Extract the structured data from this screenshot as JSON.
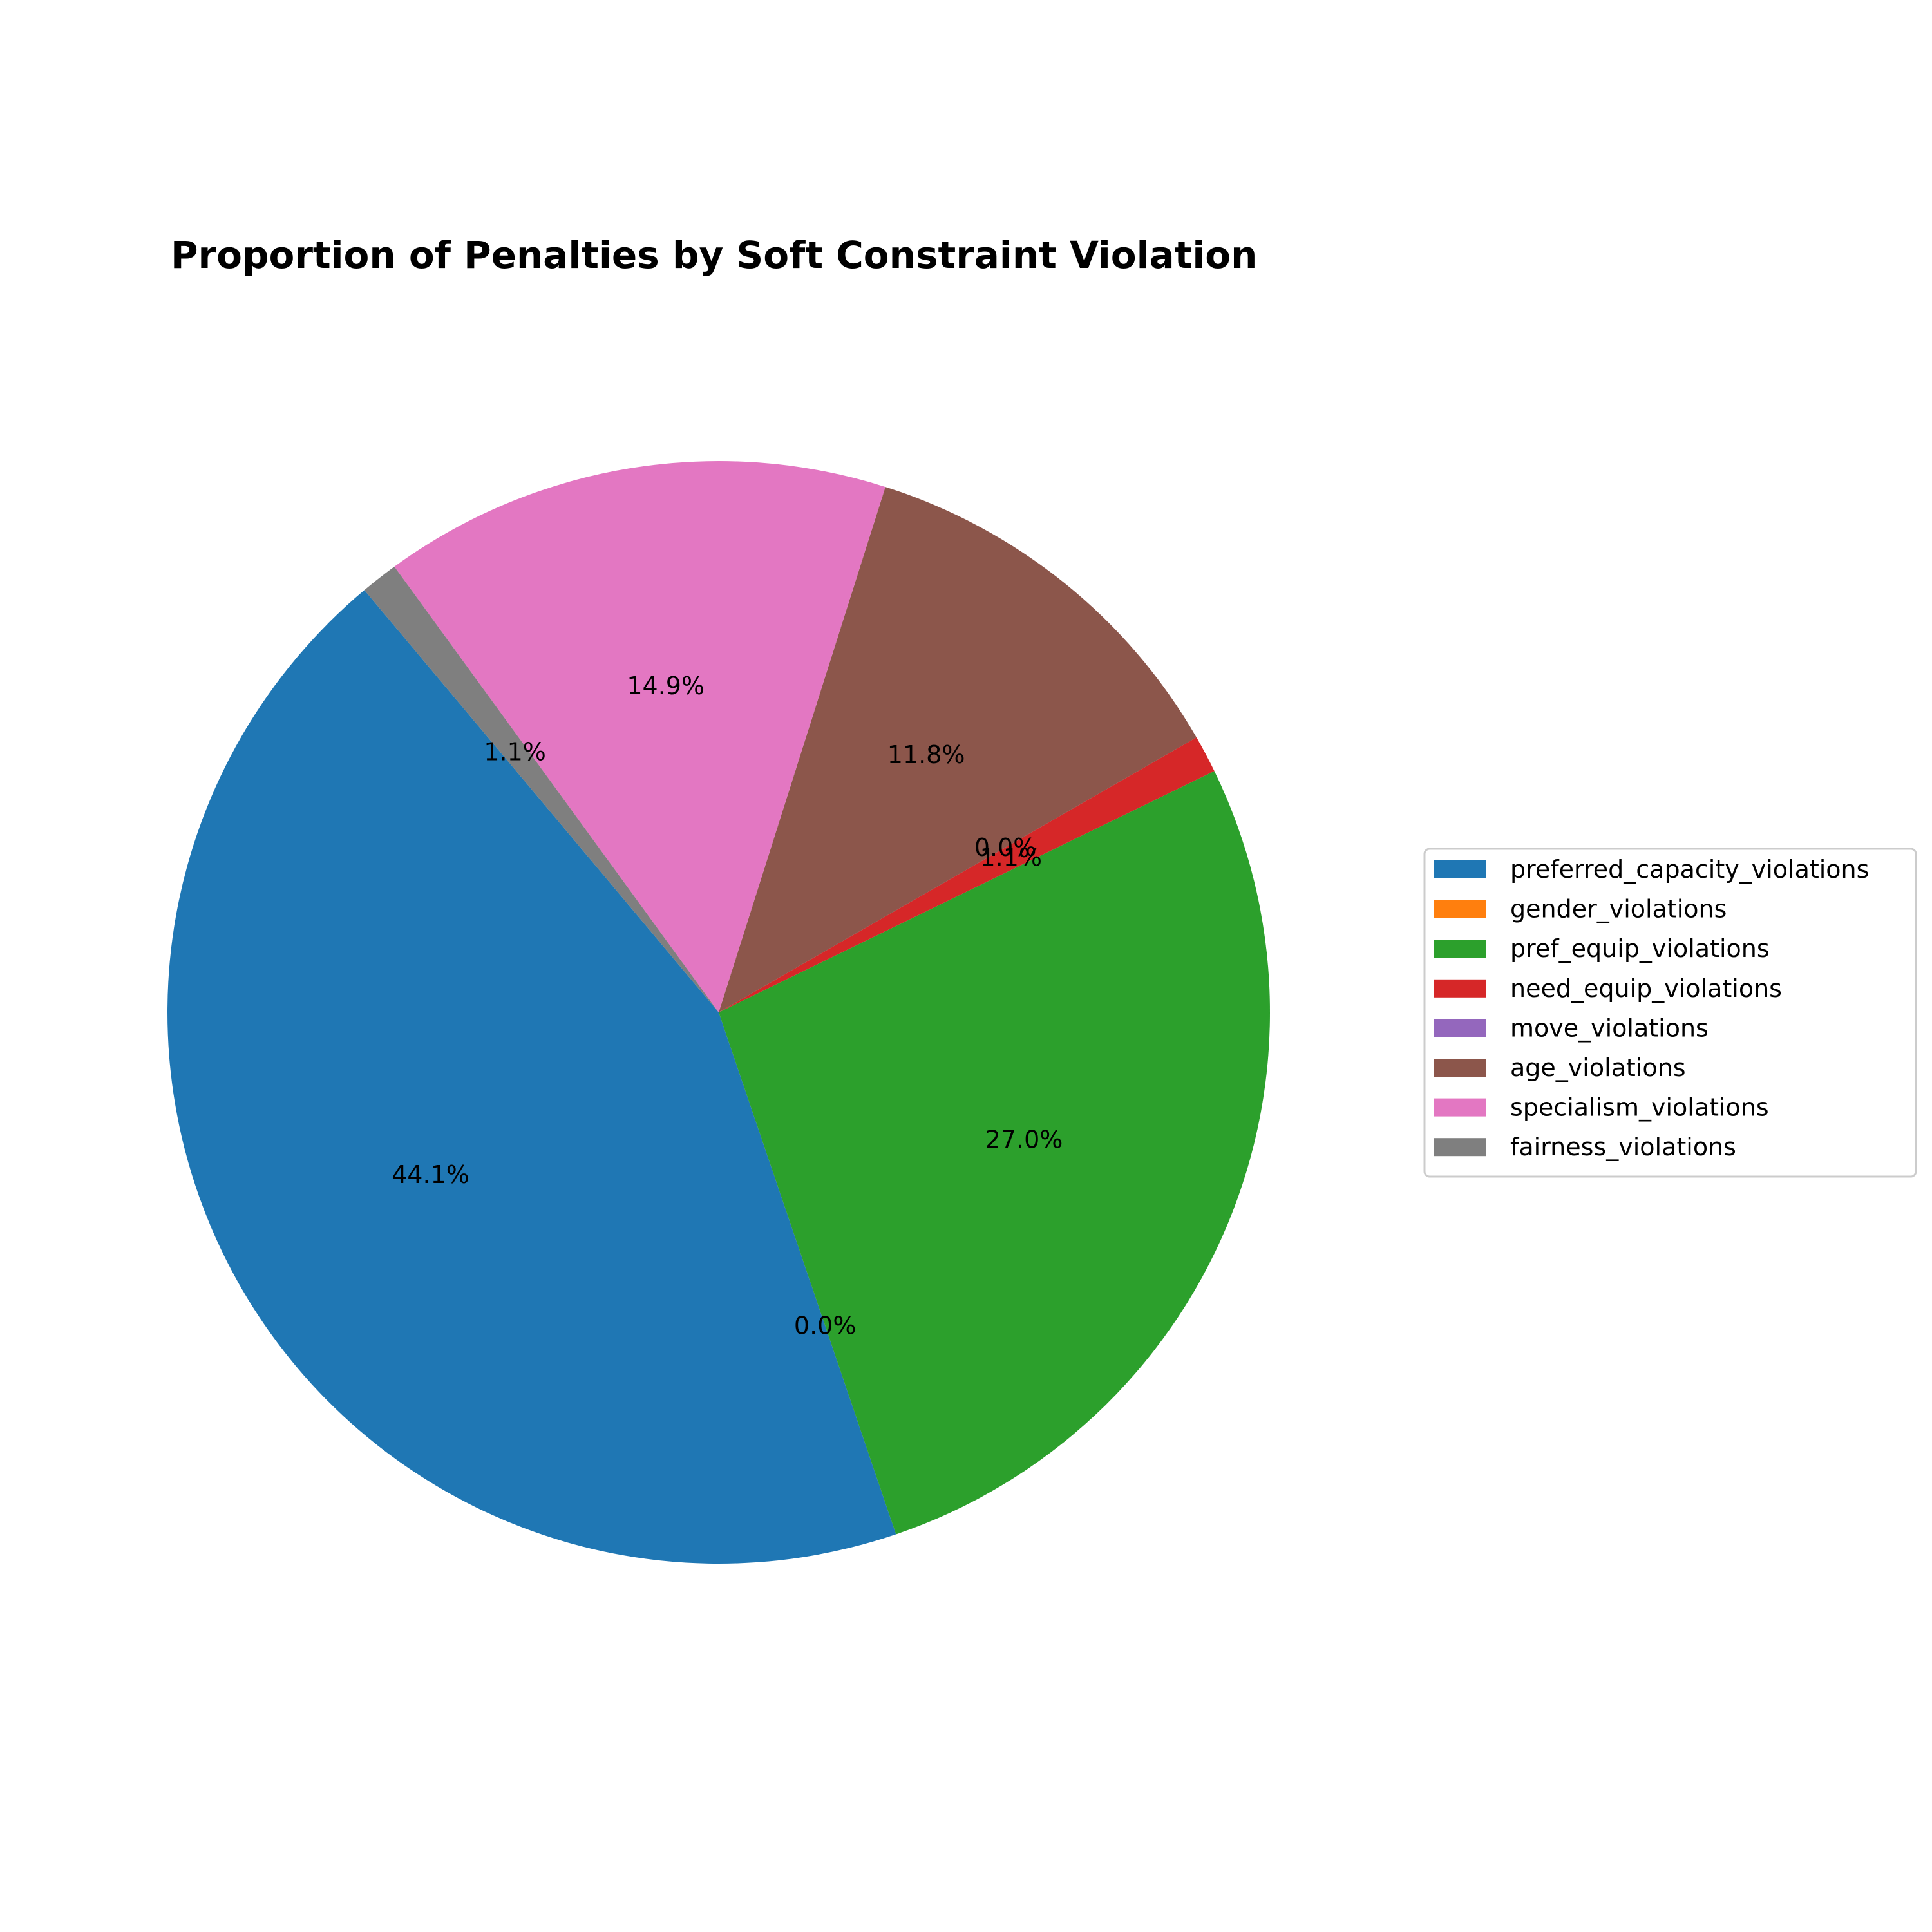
{
  "chart_data": {
    "type": "pie",
    "title": "Proportion of Penalties by Soft Constraint Violation",
    "start_angle_deg": 130,
    "direction": "counterclockwise",
    "legend_placement": "center-right",
    "categories": [
      "preferred_capacity_violations",
      "gender_violations",
      "pref_equip_violations",
      "need_equip_violations",
      "move_violations",
      "age_violations",
      "specialism_violations",
      "fairness_violations"
    ],
    "values": [
      44.1,
      0.0,
      27.0,
      1.1,
      0.0,
      11.8,
      14.9,
      1.1
    ],
    "labels": [
      "44.1%",
      "0.0%",
      "27.0%",
      "1.1%",
      "0.0%",
      "11.8%",
      "14.9%",
      "1.1%"
    ],
    "colors": [
      "#1f77b4",
      "#ff7f0e",
      "#2ca02c",
      "#d62728",
      "#9467bd",
      "#8c564b",
      "#e377c2",
      "#7f7f7f"
    ]
  }
}
